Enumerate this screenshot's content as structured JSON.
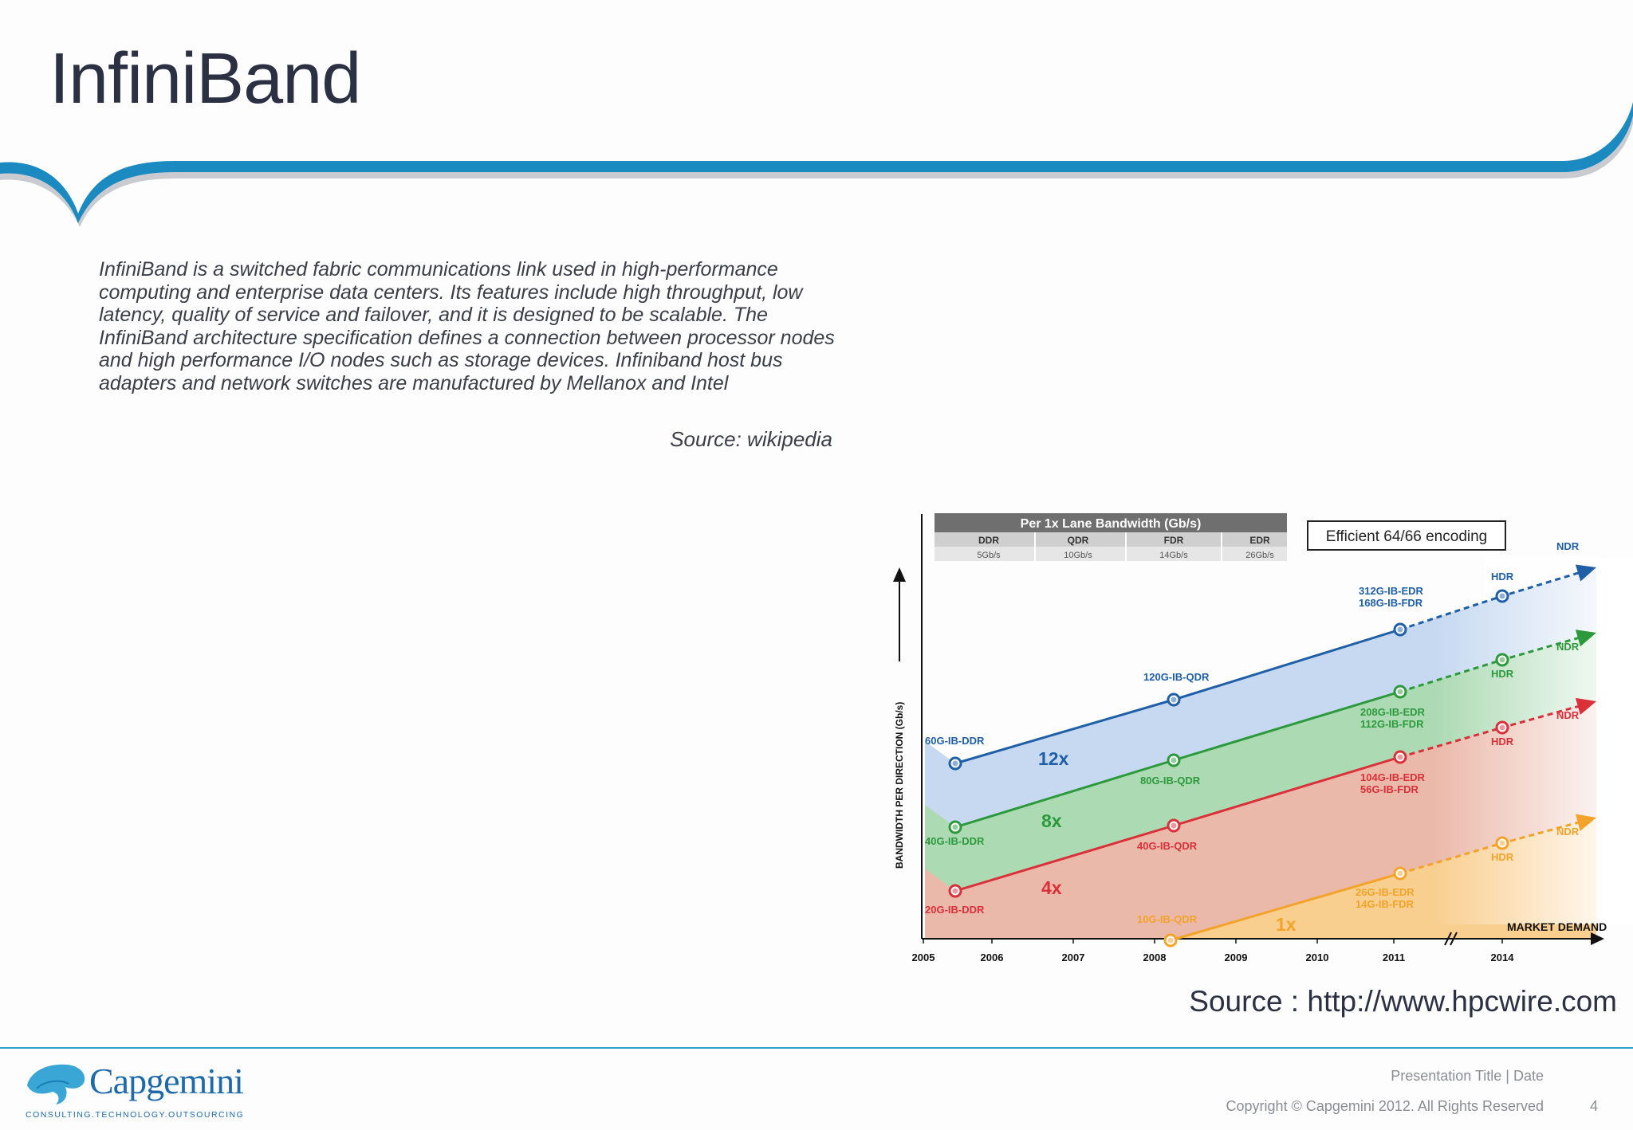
{
  "slide": {
    "title": "InfiniBand",
    "body": "InfiniBand is a switched fabric communications link used in high-performance computing and enterprise data centers. Its features include high throughput, low latency, quality of service and failover, and it is designed to be scalable. The InfiniBand architecture specification defines a connection between processor nodes and high performance I/O nodes such as storage devices. Infiniband host bus adapters and network switches are manufactured by Mellanox and Intel",
    "source_text": "Source: wikipedia",
    "chart_source": "Source : http://www.hpcwire.com"
  },
  "footer": {
    "logo_text": "Capgemini",
    "logo_tagline": "CONSULTING.TECHNOLOGY.OUTSOURCING",
    "presentation": "Presentation Title | Date",
    "copyright": "Copyright © Capgemini 2012. All Rights Reserved",
    "page_number": "4"
  },
  "colors": {
    "brand_blue": "#1a8ac0",
    "title": "#2b3142",
    "series_12x": "#1f5fa8",
    "series_8x": "#2c9a3c",
    "series_4x": "#d9303a",
    "series_1x": "#f3a32a"
  },
  "chart_data": {
    "type": "line",
    "ylabel": "BANDWIDTH PER DIRECTION (Gb/s)",
    "x_ticks": [
      "2005",
      "2006",
      "2007",
      "2008",
      "2009",
      "2010",
      "2011",
      "2014"
    ],
    "x_axis_label": "MARKET DEMAND",
    "table": {
      "title": "Per 1x Lane Bandwidth (Gb/s)",
      "headers": [
        "DDR",
        "QDR",
        "FDR",
        "EDR"
      ],
      "values": [
        "5Gb/s",
        "10Gb/s",
        "14Gb/s",
        "26Gb/s"
      ]
    },
    "note": "Efficient 64/66 encoding",
    "series": [
      {
        "name": "12x",
        "points": [
          {
            "x": 2005.4,
            "y": 60,
            "label": "60G-IB-DDR"
          },
          {
            "x": 2008.25,
            "y": 120,
            "label": "120G-IB-QDR"
          },
          {
            "x": 2011.05,
            "y": 312,
            "label": "312G-IB-EDR\n168G-IB-FDR"
          },
          {
            "x": 2014,
            "y": null,
            "label": "HDR"
          }
        ],
        "end_label": "NDR"
      },
      {
        "name": "8x",
        "points": [
          {
            "x": 2005.4,
            "y": 40,
            "label": "40G-IB-DDR"
          },
          {
            "x": 2008.25,
            "y": 80,
            "label": "80G-IB-QDR"
          },
          {
            "x": 2011.05,
            "y": 208,
            "label": "208G-IB-EDR\n112G-IB-FDR"
          },
          {
            "x": 2014,
            "y": null,
            "label": "HDR"
          }
        ],
        "end_label": "NDR"
      },
      {
        "name": "4x",
        "points": [
          {
            "x": 2005.4,
            "y": 20,
            "label": "20G-IB-DDR"
          },
          {
            "x": 2008.25,
            "y": 40,
            "label": "40G-IB-QDR"
          },
          {
            "x": 2011.05,
            "y": 104,
            "label": "104G-IB-EDR\n56G-IB-FDR"
          },
          {
            "x": 2014,
            "y": null,
            "label": "HDR"
          }
        ],
        "end_label": "NDR"
      },
      {
        "name": "1x",
        "points": [
          {
            "x": 2008.25,
            "y": 10,
            "label": "10G-IB-QDR"
          },
          {
            "x": 2011.05,
            "y": 26,
            "label": "26G-IB-EDR\n14G-IB-FDR"
          },
          {
            "x": 2014,
            "y": null,
            "label": "HDR"
          }
        ],
        "end_label": "NDR"
      }
    ]
  }
}
